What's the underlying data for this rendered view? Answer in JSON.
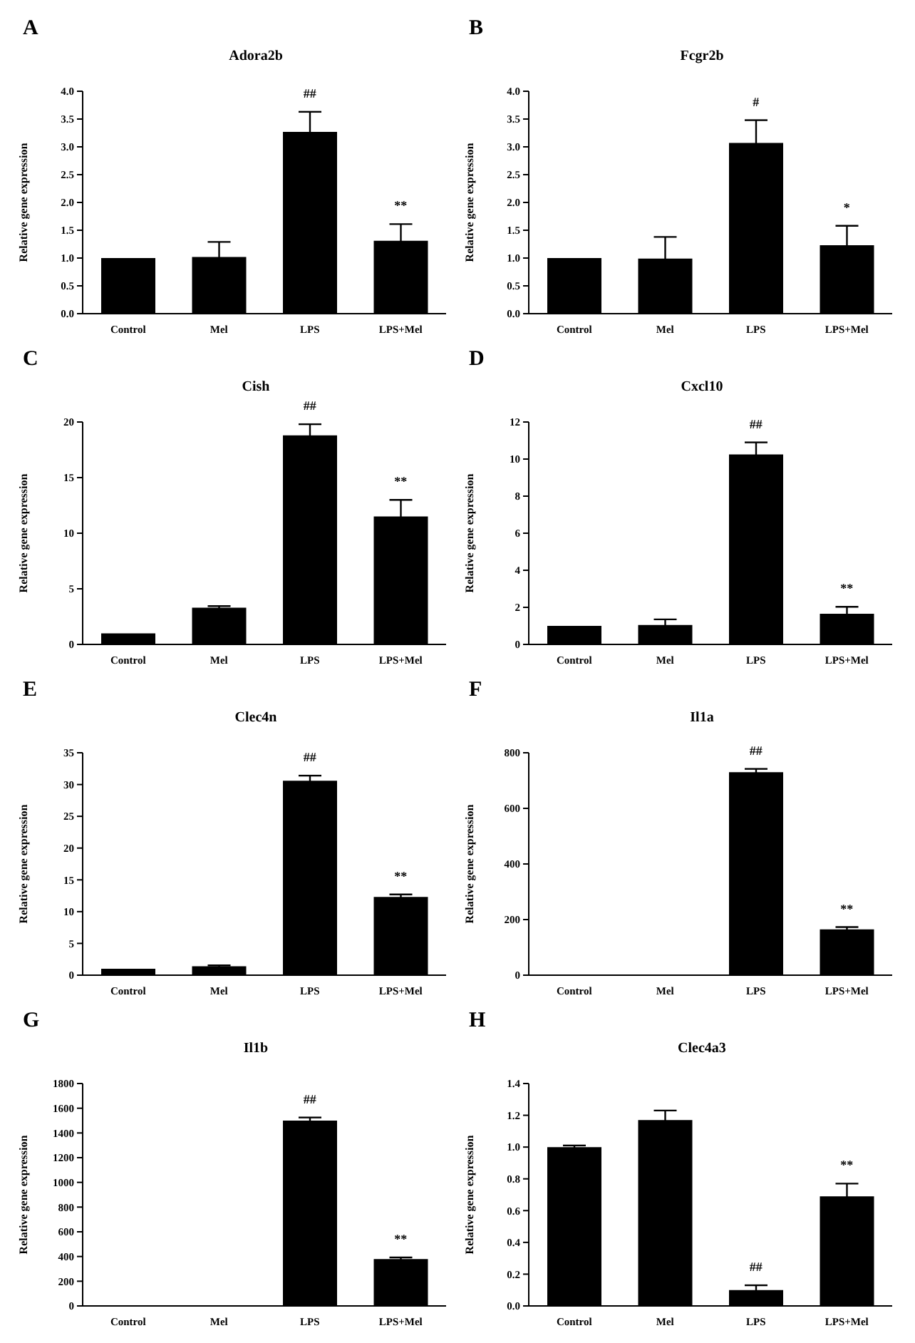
{
  "chart_data": [
    {
      "type": "bar",
      "title": "Adora2b",
      "annotations": [
        "A",
        "##",
        "**"
      ],
      "ylabel": "Relative gene expression",
      "categories": [
        "Control",
        "Mel",
        "LPS",
        "LPS+Mel"
      ],
      "values": [
        1.0,
        1.02,
        3.27,
        1.31
      ],
      "errors": [
        null,
        0.27,
        0.36,
        0.3
      ],
      "color": "#000000",
      "ylim": [
        0,
        4
      ],
      "yticks": [
        {
          "value": 0,
          "label": "0.0"
        },
        {
          "value": 0.5,
          "label": "0.5"
        },
        {
          "value": 1,
          "label": "1.0"
        },
        {
          "value": 1.5,
          "label": "1.5"
        },
        {
          "value": 2,
          "label": "2.0"
        },
        {
          "value": 2.5,
          "label": "2.5"
        },
        {
          "value": 3,
          "label": "3.0"
        },
        {
          "value": 3.5,
          "label": "3.5"
        },
        {
          "value": 4,
          "label": "4.0"
        }
      ]
    },
    {
      "type": "bar",
      "title": "Fcgr2b",
      "annotations": [
        "B",
        "#",
        "*"
      ],
      "ylabel": "Relative gene expression",
      "categories": [
        "Control",
        "Mel",
        "LPS",
        "LPS+Mel"
      ],
      "values": [
        1.0,
        0.99,
        3.07,
        1.23
      ],
      "errors": [
        null,
        0.39,
        0.41,
        0.35
      ],
      "color": "#000000",
      "ylim": [
        0,
        4
      ],
      "yticks": [
        {
          "value": 0,
          "label": "0.0"
        },
        {
          "value": 0.5,
          "label": "0.5"
        },
        {
          "value": 1,
          "label": "1.0"
        },
        {
          "value": 1.5,
          "label": "1.5"
        },
        {
          "value": 2,
          "label": "2.0"
        },
        {
          "value": 2.5,
          "label": "2.5"
        },
        {
          "value": 3,
          "label": "3.0"
        },
        {
          "value": 3.5,
          "label": "3.5"
        },
        {
          "value": 4,
          "label": "4.0"
        }
      ]
    },
    {
      "type": "bar",
      "title": "Cish",
      "annotations": [
        "C",
        "##",
        "**"
      ],
      "ylabel": "Relative gene expression",
      "categories": [
        "Control",
        "Mel",
        "LPS",
        "LPS+Mel"
      ],
      "values": [
        1.0,
        3.3,
        18.8,
        11.5
      ],
      "errors": [
        null,
        0.15,
        1.0,
        1.5
      ],
      "color": "#000000",
      "ylim": [
        0,
        20
      ],
      "yticks": [
        0,
        5,
        10,
        15,
        20
      ]
    },
    {
      "type": "bar",
      "title": "Cxcl10",
      "annotations": [
        "D",
        "##",
        "**"
      ],
      "ylabel": "Relative gene expression",
      "categories": [
        "Control",
        "Mel",
        "LPS",
        "LPS+Mel"
      ],
      "values": [
        1.0,
        1.05,
        10.25,
        1.65
      ],
      "errors": [
        null,
        0.3,
        0.65,
        0.38
      ],
      "color": "#000000",
      "ylim": [
        0,
        12
      ],
      "yticks": [
        0,
        2,
        4,
        6,
        8,
        10,
        12
      ]
    },
    {
      "type": "bar",
      "title": "Clec4n",
      "annotations": [
        "E",
        "##",
        "**"
      ],
      "ylabel": "Relative gene expression",
      "categories": [
        "Control",
        "Mel",
        "LPS",
        "LPS+Mel"
      ],
      "values": [
        1.0,
        1.4,
        30.6,
        12.3
      ],
      "errors": [
        null,
        0.15,
        0.8,
        0.4
      ],
      "color": "#000000",
      "ylim": [
        0,
        35
      ],
      "yticks": [
        0,
        5,
        10,
        15,
        20,
        25,
        30,
        35
      ]
    },
    {
      "type": "bar",
      "title": "Il1a",
      "annotations": [
        "F",
        "##",
        "**"
      ],
      "ylabel": "Relative gene expression",
      "categories": [
        "Control",
        "Mel",
        "LPS",
        "LPS+Mel"
      ],
      "values": [
        0,
        null,
        730,
        165
      ],
      "errors": [
        null,
        null,
        12,
        8
      ],
      "color": "#000000",
      "ylim": [
        0,
        800
      ],
      "yticks": [
        0,
        200,
        400,
        600,
        800
      ]
    },
    {
      "type": "bar",
      "title": "Il1b",
      "annotations": [
        "G",
        "##",
        "**"
      ],
      "ylabel": "Relative gene expression",
      "categories": [
        "Control",
        "Mel",
        "LPS",
        "LPS+Mel"
      ],
      "values": [
        0,
        0,
        1500,
        380
      ],
      "errors": [
        null,
        null,
        25,
        12
      ],
      "color": "#000000",
      "ylim": [
        0,
        1800
      ],
      "yticks": [
        0,
        200,
        400,
        600,
        800,
        1000,
        1200,
        1400,
        1600,
        1800
      ]
    },
    {
      "type": "bar",
      "title": "Clec4a3",
      "annotations": [
        "H",
        "##",
        "**"
      ],
      "ylabel": "Relative gene expression",
      "categories": [
        "Control",
        "Mel",
        "LPS",
        "LPS+Mel"
      ],
      "values": [
        1.0,
        1.17,
        0.1,
        0.69
      ],
      "errors": [
        0.01,
        0.06,
        0.03,
        0.08
      ],
      "color": "#000000",
      "ylim": [
        0,
        1.4
      ],
      "yticks": [
        {
          "value": 0,
          "label": "0.0"
        },
        {
          "value": 0.2,
          "label": "0.2"
        },
        {
          "value": 0.4,
          "label": "0.4"
        },
        {
          "value": 0.6,
          "label": "0.6"
        },
        {
          "value": 0.8,
          "label": "0.8"
        },
        {
          "value": 1,
          "label": "1.0"
        },
        {
          "value": 1.2,
          "label": "1.2"
        },
        {
          "value": 1.4,
          "label": "1.4"
        }
      ]
    }
  ]
}
